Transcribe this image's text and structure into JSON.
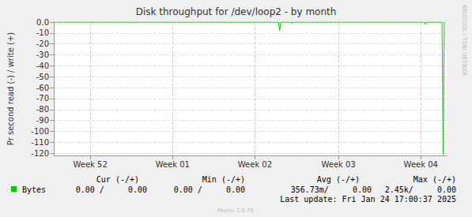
{
  "chart_data": {
    "type": "line",
    "title": "Disk throughput for /dev/loop2 - by month",
    "y_label": "Pr second read (-) / write (+)",
    "x": [
      0,
      19.1,
      19.2,
      19.3,
      20.15,
      20.2,
      20.25,
      31.5,
      31.6,
      31.7,
      33.0,
      33.1,
      33.2
    ],
    "series": [
      {
        "name": "Bytes",
        "color": "#00cc00",
        "values": [
          0,
          0,
          -8,
          0,
          0,
          -1,
          0,
          0,
          -2,
          0,
          0,
          -121,
          0
        ],
        "stats": [
          "0.00 /     0.00",
          "0.00 /     0.00",
          "356.73m/     0.00",
          "2.45k/     0.00"
        ]
      }
    ],
    "stats_headers": [
      "Cur (-/+)",
      "Min (-/+)",
      "Avg (-/+)",
      "Max (-/+)"
    ],
    "xlim": [
      0,
      33.4
    ],
    "xticks": [
      {
        "value": 3.1,
        "label": "Week 52"
      },
      {
        "value": 10.1,
        "label": "Week 01"
      },
      {
        "value": 17.1,
        "label": "Week 02"
      },
      {
        "value": 24.2,
        "label": "Week 03"
      },
      {
        "value": 31.2,
        "label": "Week 04"
      }
    ],
    "ylim": [
      -122,
      0
    ],
    "yticks": [
      {
        "value": 0,
        "label": "0.0"
      },
      -10,
      -20,
      -30,
      -40,
      -50,
      -60,
      -70,
      -80,
      -90,
      -100,
      -110,
      -120
    ],
    "grid": true,
    "footer": "Last update: Fri Jan 24 17:00:37 2025",
    "credit": "Munin 2.0.76",
    "side_text": "RRDTOOL / TOBI OETIKER"
  }
}
